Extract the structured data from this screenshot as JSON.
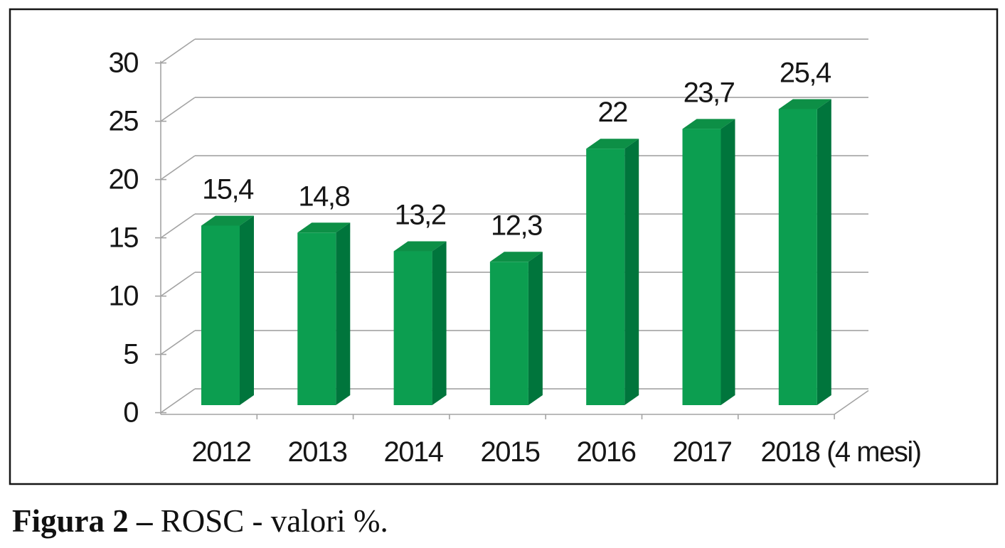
{
  "chart_data": {
    "type": "bar",
    "style": "3d-column",
    "title": "",
    "xlabel": "",
    "ylabel": "",
    "categories": [
      "2012",
      "2013",
      "2014",
      "2015",
      "2016",
      "2017",
      "2018 (4 mesi)"
    ],
    "values": [
      15.4,
      14.8,
      13.2,
      12.3,
      22,
      23.7,
      25.4
    ],
    "value_labels": [
      "15,4",
      "14,8",
      "13,2",
      "12,3",
      "22",
      "23,7",
      "25,4"
    ],
    "y_ticks": [
      0,
      5,
      10,
      15,
      20,
      25,
      30
    ],
    "y_tick_labels": [
      "0",
      "5",
      "10",
      "15",
      "20",
      "25",
      "30"
    ],
    "ylim": [
      0,
      30
    ],
    "grid": true,
    "legend_position": "none",
    "colors": {
      "bar_front": "#0C9E50",
      "bar_side": "#00753C",
      "bar_top": "#0D8F46",
      "grid_line": "#A3A3A3",
      "text": "#161616",
      "frame_border": "#161616",
      "background": "#FFFFFF"
    }
  },
  "caption": {
    "label_bold": "Figura 2 –",
    "text": " ROSC - valori %."
  }
}
